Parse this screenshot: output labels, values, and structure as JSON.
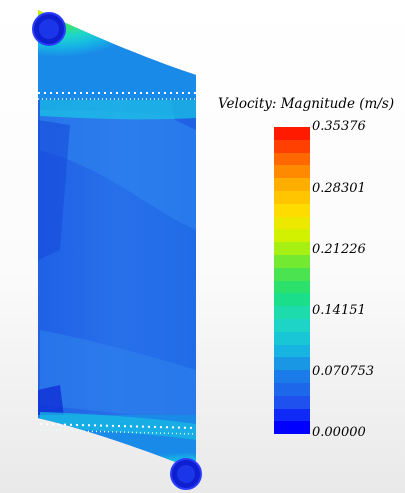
{
  "legend": {
    "title": "Velocity: Magnitude (m/s)",
    "ticks": [
      "0.35376",
      "0.28301",
      "0.21226",
      "0.14151",
      "0.070753",
      "0.00000"
    ],
    "min": 0.0,
    "max": 0.35376,
    "colors": [
      "#ff1a00",
      "#ff6a00",
      "#ffb400",
      "#ffe200",
      "#c8f400",
      "#5ce640",
      "#1adf7c",
      "#20d9c2",
      "#16bce0",
      "#1b7fe8",
      "#1f55ec",
      "#0000ff"
    ]
  },
  "image": {
    "subject": "tank-flow-contour",
    "inlet_label": "",
    "outlet_label": ""
  }
}
